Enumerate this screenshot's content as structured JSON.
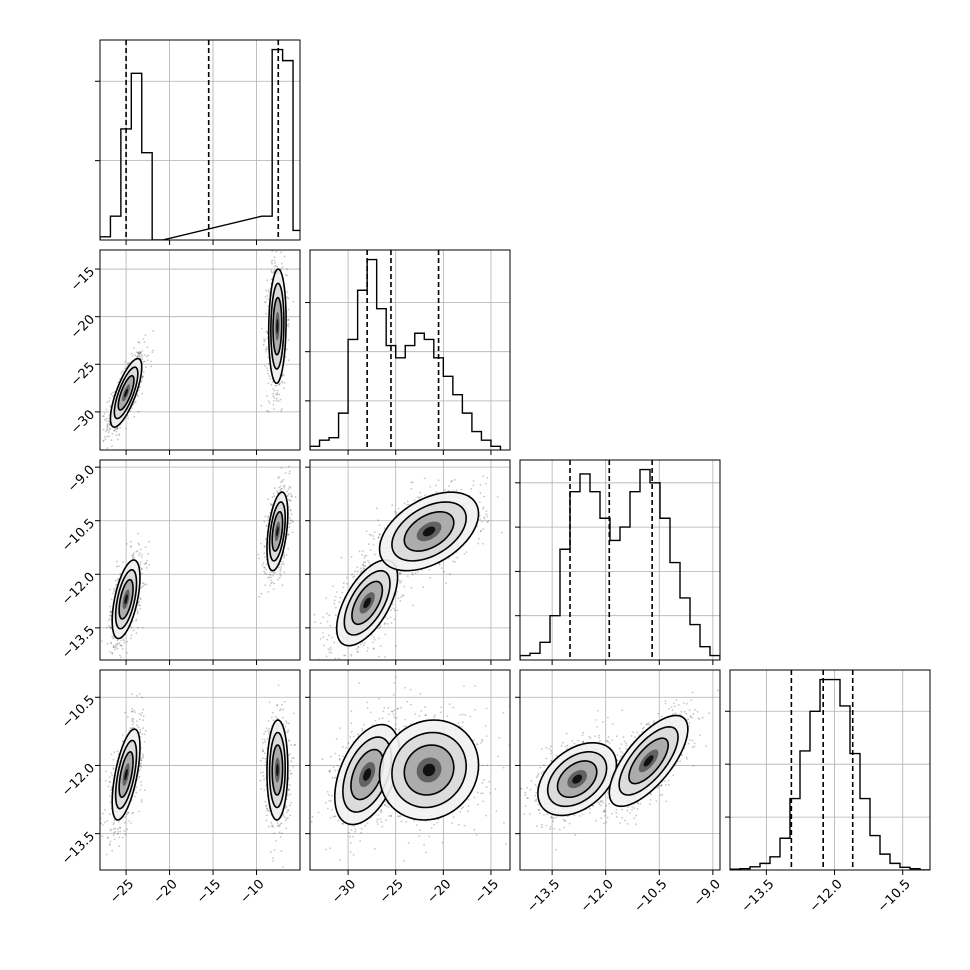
{
  "chart_data": [
    {
      "type": "histogram",
      "panel": "diag-0",
      "xlim": [
        -28,
        -5
      ],
      "x_ticks": [
        -25,
        -20,
        -15,
        -10
      ],
      "y_ticks": [
        0.5,
        1.0
      ],
      "grid": true,
      "quantile_lines": [
        -25.0,
        -15.5,
        -7.5
      ],
      "bins": [
        [
          -28.0,
          0.02
        ],
        [
          -26.8,
          0.15
        ],
        [
          -25.6,
          0.7
        ],
        [
          -24.4,
          1.05
        ],
        [
          -23.2,
          0.55
        ],
        [
          -22.0,
          0.0
        ],
        [
          -9.4,
          0.15
        ],
        [
          -8.2,
          1.2
        ],
        [
          -7.0,
          1.13
        ],
        [
          -5.8,
          0.06
        ]
      ]
    },
    {
      "type": "scatter+contour",
      "panel": "row1-col0",
      "xlim": [
        -28,
        -5
      ],
      "ylim": [
        -34,
        -13
      ],
      "x_ticks": [
        -25,
        -20,
        -15,
        -10
      ],
      "y_ticks": [
        -30,
        -25,
        -20,
        -15
      ],
      "y_tick_labels": [
        "−30",
        "−25",
        "−20",
        "−15"
      ],
      "grid": true,
      "clusters": [
        {
          "cx": -25.0,
          "cy": -28.0,
          "sx": 0.9,
          "sy": 1.8,
          "corr": 0.75,
          "weight": 0.5
        },
        {
          "cx": -7.6,
          "cy": -21.0,
          "sx": 0.5,
          "sy": 3.0,
          "corr": 0.1,
          "weight": 0.5
        }
      ]
    },
    {
      "type": "histogram",
      "panel": "diag-1",
      "xlim": [
        -34,
        -13
      ],
      "x_ticks": [
        -30,
        -25,
        -20,
        -15
      ],
      "y_ticks": [
        0.04,
        0.08,
        0.12
      ],
      "grid": true,
      "quantile_lines": [
        -28.0,
        -25.5,
        -20.5
      ],
      "bins": [
        [
          -34.0,
          0.003
        ],
        [
          -33.0,
          0.008
        ],
        [
          -32.0,
          0.01
        ],
        [
          -31.0,
          0.03
        ],
        [
          -30.0,
          0.09
        ],
        [
          -29.0,
          0.13
        ],
        [
          -28.0,
          0.155
        ],
        [
          -27.0,
          0.115
        ],
        [
          -26.0,
          0.085
        ],
        [
          -25.0,
          0.075
        ],
        [
          -24.0,
          0.085
        ],
        [
          -23.0,
          0.095
        ],
        [
          -22.0,
          0.09
        ],
        [
          -21.0,
          0.075
        ],
        [
          -20.0,
          0.06
        ],
        [
          -19.0,
          0.045
        ],
        [
          -18.0,
          0.03
        ],
        [
          -17.0,
          0.015
        ],
        [
          -16.0,
          0.008
        ],
        [
          -15.0,
          0.003
        ]
      ]
    },
    {
      "type": "scatter+contour",
      "panel": "row2-col0",
      "xlim": [
        -28,
        -5
      ],
      "ylim": [
        -14.4,
        -8.8
      ],
      "x_ticks": [
        -25,
        -20,
        -15,
        -10
      ],
      "y_ticks": [
        -13.5,
        -12.0,
        -10.5,
        -9.0
      ],
      "y_tick_labels": [
        "−13.5",
        "−12.0",
        "−10.5",
        "−9.0"
      ],
      "grid": true,
      "clusters": [
        {
          "cx": -25.0,
          "cy": -12.7,
          "sx": 0.8,
          "sy": 0.55,
          "corr": 0.55,
          "weight": 0.5
        },
        {
          "cx": -7.6,
          "cy": -10.8,
          "sx": 0.6,
          "sy": 0.55,
          "corr": 0.45,
          "weight": 0.5
        }
      ]
    },
    {
      "type": "scatter+contour",
      "panel": "row2-col1",
      "xlim": [
        -34,
        -13
      ],
      "ylim": [
        -14.4,
        -8.8
      ],
      "x_ticks": [
        -30,
        -25,
        -20,
        -15
      ],
      "y_ticks": [
        -13.5,
        -12.0,
        -10.5,
        -9.0
      ],
      "grid": true,
      "clusters": [
        {
          "cx": -28.0,
          "cy": -12.8,
          "sx": 1.6,
          "sy": 0.6,
          "corr": 0.6,
          "weight": 0.55
        },
        {
          "cx": -21.5,
          "cy": -10.8,
          "sx": 2.6,
          "sy": 0.55,
          "corr": 0.45,
          "weight": 0.45
        }
      ]
    },
    {
      "type": "histogram",
      "panel": "diag-2",
      "xlim": [
        -14.4,
        -8.8
      ],
      "x_ticks": [
        -13.5,
        -12.0,
        -10.5,
        -9.0
      ],
      "y_ticks": [
        0.1,
        0.2,
        0.3,
        0.4
      ],
      "grid": true,
      "quantile_lines": [
        -13.0,
        -11.9,
        -10.7
      ],
      "bins": [
        [
          -14.4,
          0.01
        ],
        [
          -14.12,
          0.015
        ],
        [
          -13.84,
          0.04
        ],
        [
          -13.56,
          0.1
        ],
        [
          -13.28,
          0.25
        ],
        [
          -13.0,
          0.38
        ],
        [
          -12.72,
          0.42
        ],
        [
          -12.44,
          0.38
        ],
        [
          -12.16,
          0.32
        ],
        [
          -11.88,
          0.27
        ],
        [
          -11.6,
          0.3
        ],
        [
          -11.32,
          0.38
        ],
        [
          -11.04,
          0.43
        ],
        [
          -10.76,
          0.4
        ],
        [
          -10.48,
          0.32
        ],
        [
          -10.2,
          0.22
        ],
        [
          -9.92,
          0.14
        ],
        [
          -9.64,
          0.08
        ],
        [
          -9.36,
          0.03
        ],
        [
          -9.08,
          0.01
        ]
      ]
    },
    {
      "type": "scatter+contour",
      "panel": "row3-col0",
      "xlim": [
        -28,
        -5
      ],
      "ylim": [
        -14.3,
        -9.9
      ],
      "x_ticks": [
        -25,
        -20,
        -15,
        -10
      ],
      "y_ticks": [
        -13.5,
        -12.0,
        -10.5
      ],
      "y_tick_labels": [
        "−13.5",
        "−12.0",
        "−10.5"
      ],
      "x_tick_labels": [
        "−25",
        "−20",
        "−15",
        "−10"
      ],
      "grid": true,
      "clusters": [
        {
          "cx": -25.0,
          "cy": -12.2,
          "sx": 0.8,
          "sy": 0.5,
          "corr": 0.6,
          "weight": 0.5
        },
        {
          "cx": -7.6,
          "cy": -12.1,
          "sx": 0.6,
          "sy": 0.55,
          "corr": 0.05,
          "weight": 0.5
        }
      ]
    },
    {
      "type": "scatter+contour",
      "panel": "row3-col1",
      "xlim": [
        -34,
        -13
      ],
      "ylim": [
        -14.3,
        -9.9
      ],
      "x_ticks": [
        -30,
        -25,
        -20,
        -15
      ],
      "y_ticks": [
        -13.5,
        -12.0,
        -10.5
      ],
      "x_tick_labels": [
        "−30",
        "−25",
        "−20",
        "−15"
      ],
      "grid": true,
      "clusters": [
        {
          "cx": -28.0,
          "cy": -12.2,
          "sx": 1.7,
          "sy": 0.55,
          "corr": 0.45,
          "weight": 0.5
        },
        {
          "cx": -21.5,
          "cy": -12.1,
          "sx": 2.6,
          "sy": 0.55,
          "corr": 0.1,
          "weight": 0.5
        }
      ]
    },
    {
      "type": "scatter+contour",
      "panel": "row3-col2",
      "xlim": [
        -14.4,
        -8.8
      ],
      "ylim": [
        -14.3,
        -9.9
      ],
      "x_ticks": [
        -13.5,
        -12.0,
        -10.5,
        -9.0
      ],
      "y_ticks": [
        -13.5,
        -12.0,
        -10.5
      ],
      "x_tick_labels": [
        "−13.5",
        "−12.0",
        "−10.5",
        "−9.0"
      ],
      "grid": true,
      "clusters": [
        {
          "cx": -12.8,
          "cy": -12.3,
          "sx": 0.55,
          "sy": 0.4,
          "corr": 0.4,
          "weight": 0.5
        },
        {
          "cx": -10.8,
          "cy": -11.9,
          "sx": 0.55,
          "sy": 0.5,
          "corr": 0.7,
          "weight": 0.5
        }
      ]
    },
    {
      "type": "histogram",
      "panel": "diag-3",
      "xlim": [
        -14.3,
        -9.9
      ],
      "x_ticks": [
        -13.5,
        -12.0,
        -10.5
      ],
      "x_tick_labels": [
        "−13.5",
        "−12.0",
        "−10.5"
      ],
      "y_ticks": [
        0.2,
        0.4,
        0.6
      ],
      "grid": true,
      "quantile_lines": [
        -12.95,
        -12.25,
        -11.6
      ],
      "bins": [
        [
          -14.3,
          0.003
        ],
        [
          -14.08,
          0.005
        ],
        [
          -13.86,
          0.012
        ],
        [
          -13.64,
          0.025
        ],
        [
          -13.42,
          0.05
        ],
        [
          -13.2,
          0.12
        ],
        [
          -12.98,
          0.27
        ],
        [
          -12.76,
          0.45
        ],
        [
          -12.54,
          0.6
        ],
        [
          -12.32,
          0.72
        ],
        [
          -12.1,
          0.72
        ],
        [
          -11.88,
          0.62
        ],
        [
          -11.66,
          0.44
        ],
        [
          -11.44,
          0.27
        ],
        [
          -11.22,
          0.13
        ],
        [
          -11.0,
          0.06
        ],
        [
          -10.78,
          0.025
        ],
        [
          -10.56,
          0.01
        ],
        [
          -10.34,
          0.005
        ],
        [
          -10.12,
          0.0
        ]
      ]
    }
  ]
}
